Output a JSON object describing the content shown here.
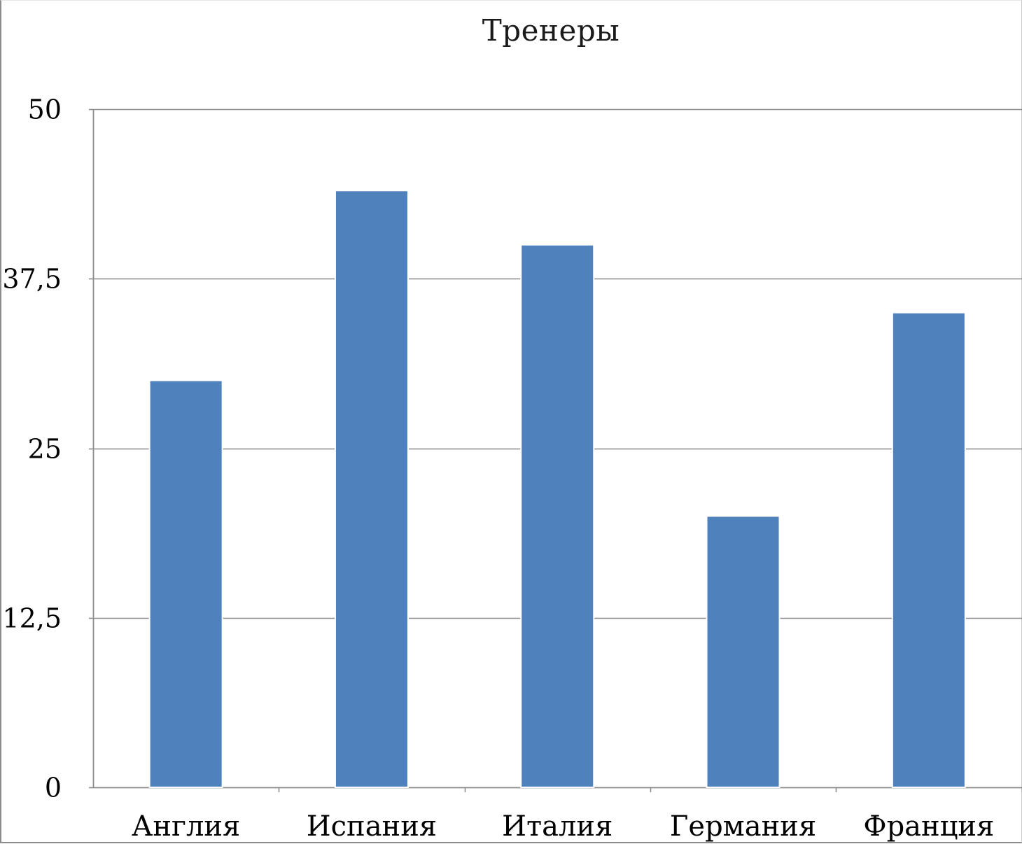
{
  "chart_data": {
    "type": "bar",
    "title": "Тренеры",
    "categories": [
      "Англия",
      "Испания",
      "Италия",
      "Германия",
      "Франция"
    ],
    "values": [
      30,
      44,
      40,
      20,
      35
    ],
    "ylim": [
      0,
      50
    ],
    "yticks": [
      0,
      12.5,
      25,
      37.5,
      50
    ],
    "ytick_labels": [
      "0",
      "12,5",
      "25",
      "37,5",
      "50"
    ],
    "grid": true,
    "legend": "none",
    "bar_color": "#4f81bd",
    "grid_color": "#8c8c8c"
  }
}
